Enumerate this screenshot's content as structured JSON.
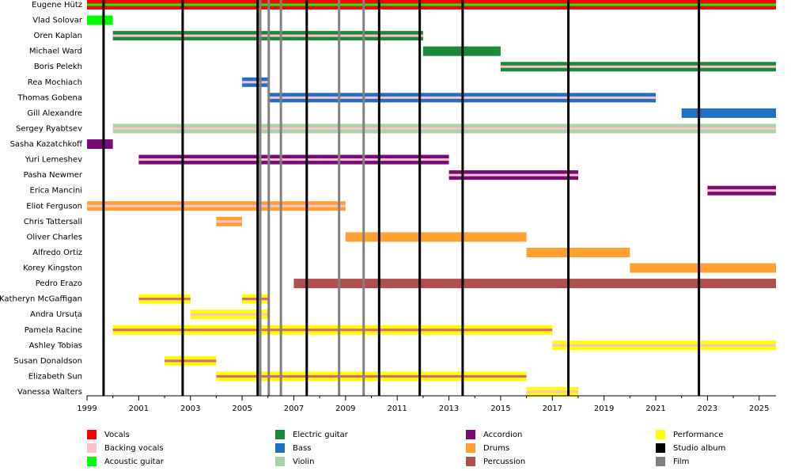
{
  "chart_data": {
    "type": "timeline",
    "xlim": [
      1999,
      2025.65
    ],
    "xticks": [
      1999,
      2001,
      2003,
      2005,
      2007,
      2009,
      2011,
      2013,
      2015,
      2017,
      2019,
      2021,
      2023,
      2025
    ],
    "minor_xticks": [
      2000,
      2002,
      2004,
      2006,
      2008,
      2010,
      2012,
      2014,
      2016,
      2018,
      2020,
      2022,
      2024
    ],
    "series": [
      {
        "name": "Eugene Hütz",
        "color": "#ff0000",
        "stripe": "#00ff00",
        "periods": [
          {
            "start": 1999,
            "end": 2025.65
          }
        ]
      },
      {
        "name": "Vlad Solovar",
        "color": "#00ff00",
        "stripe": null,
        "periods": [
          {
            "start": 1999,
            "end": 2000
          }
        ]
      },
      {
        "name": "Oren Kaplan",
        "color": "#1a8a3a",
        "stripe": "#ffc0cb",
        "periods": [
          {
            "start": 2000,
            "end": 2012
          }
        ]
      },
      {
        "name": "Michael Ward",
        "color": "#1a8a3a",
        "stripe": null,
        "periods": [
          {
            "start": 2012,
            "end": 2015
          }
        ]
      },
      {
        "name": "Boris Pelekh",
        "color": "#1a8a3a",
        "stripe": "#ffc0cb",
        "periods": [
          {
            "start": 2015,
            "end": 2025.65
          }
        ]
      },
      {
        "name": "Rea Mochiach",
        "color": "#1f6fc5",
        "stripe": "#ffc0cb",
        "periods": [
          {
            "start": 2005,
            "end": 2006
          }
        ]
      },
      {
        "name": "Thomas Gobena",
        "color": "#1f6fc5",
        "stripe": "#ffc0cb",
        "periods": [
          {
            "start": 2006,
            "end": 2021
          }
        ]
      },
      {
        "name": "Gill Alexandre",
        "color": "#1f6fc5",
        "stripe": null,
        "periods": [
          {
            "start": 2022,
            "end": 2025.65
          }
        ]
      },
      {
        "name": "Sergey Ryabtsev",
        "color": "#a8d4a8",
        "stripe": "#ffc0cb",
        "periods": [
          {
            "start": 2000,
            "end": 2025.65
          }
        ]
      },
      {
        "name": "Sasha Kazatchkoff",
        "color": "#7a0a7a",
        "stripe": null,
        "periods": [
          {
            "start": 1999,
            "end": 2000
          }
        ]
      },
      {
        "name": "Yuri Lemeshev",
        "color": "#7a0a7a",
        "stripe": "#ffc0cb",
        "periods": [
          {
            "start": 2001,
            "end": 2013
          }
        ]
      },
      {
        "name": "Pasha Newmer",
        "color": "#7a0a7a",
        "stripe": "#ffc0cb",
        "periods": [
          {
            "start": 2013,
            "end": 2018
          }
        ]
      },
      {
        "name": "Erica Mancini",
        "color": "#7a0a7a",
        "stripe": "#ffc0cb",
        "periods": [
          {
            "start": 2023,
            "end": 2025.65
          }
        ]
      },
      {
        "name": "Eliot Ferguson",
        "color": "#ffa030",
        "stripe": "#ffc0cb",
        "periods": [
          {
            "start": 1999,
            "end": 2009
          }
        ]
      },
      {
        "name": "Chris Tattersall",
        "color": "#ffa030",
        "stripe": "#ffc0cb",
        "periods": [
          {
            "start": 2004,
            "end": 2005
          }
        ]
      },
      {
        "name": "Oliver Charles",
        "color": "#ffa030",
        "stripe": null,
        "periods": [
          {
            "start": 2009,
            "end": 2016
          }
        ]
      },
      {
        "name": "Alfredo Ortiz",
        "color": "#ffa030",
        "stripe": null,
        "periods": [
          {
            "start": 2016,
            "end": 2020
          }
        ]
      },
      {
        "name": "Korey Kingston",
        "color": "#ffa030",
        "stripe": null,
        "periods": [
          {
            "start": 2020,
            "end": 2025.65
          }
        ]
      },
      {
        "name": "Pedro Erazo",
        "color": "#b04f4f",
        "stripe": null,
        "periods": [
          {
            "start": 2007,
            "end": 2025.65
          }
        ]
      },
      {
        "name": "Katheryn McGaffigan",
        "color": "#ffff00",
        "stripe": "#e06080",
        "periods": [
          {
            "start": 2001,
            "end": 2003
          },
          {
            "start": 2005,
            "end": 2006
          }
        ]
      },
      {
        "name": "Andra Ursuța",
        "color": "#ffff00",
        "stripe": "#ffc0cb",
        "periods": [
          {
            "start": 2003,
            "end": 2006
          }
        ]
      },
      {
        "name": "Pamela Racine",
        "color": "#ffff00",
        "stripe": "#e06080",
        "periods": [
          {
            "start": 2000,
            "end": 2017
          }
        ]
      },
      {
        "name": "Ashley Tobias",
        "color": "#ffff00",
        "stripe": "#ffc0cb",
        "periods": [
          {
            "start": 2017,
            "end": 2025.65
          }
        ]
      },
      {
        "name": "Susan Donaldson",
        "color": "#ffff00",
        "stripe": "#e06080",
        "periods": [
          {
            "start": 2002,
            "end": 2004
          }
        ]
      },
      {
        "name": "Elizabeth Sun",
        "color": "#ffff00",
        "stripe": "#e06080",
        "periods": [
          {
            "start": 2004,
            "end": 2016
          }
        ]
      },
      {
        "name": "Vanessa Walters",
        "color": "#ffff00",
        "stripe": "#ffc0cb",
        "periods": [
          {
            "start": 2016,
            "end": 2018
          }
        ]
      }
    ],
    "events": [
      {
        "x": 1999.64,
        "color": "#000000",
        "width": 3
      },
      {
        "x": 2002.7,
        "color": "#000000",
        "width": 3
      },
      {
        "x": 2005.6,
        "color": "#000000",
        "width": 3
      },
      {
        "x": 2005.7,
        "color": "#808080",
        "width": 3
      },
      {
        "x": 2006.03,
        "color": "#808080",
        "width": 3
      },
      {
        "x": 2006.5,
        "color": "#808080",
        "width": 3
      },
      {
        "x": 2007.5,
        "color": "#000000",
        "width": 3
      },
      {
        "x": 2008.75,
        "color": "#808080",
        "width": 3
      },
      {
        "x": 2009.7,
        "color": "#808080",
        "width": 3
      },
      {
        "x": 2010.3,
        "color": "#000000",
        "width": 3
      },
      {
        "x": 2011.87,
        "color": "#000000",
        "width": 3
      },
      {
        "x": 2013.53,
        "color": "#000000",
        "width": 3
      },
      {
        "x": 2017.62,
        "color": "#000000",
        "width": 3
      },
      {
        "x": 2022.67,
        "color": "#000000",
        "width": 3
      }
    ],
    "legend": [
      {
        "name": "Vocals",
        "color": "#ff0000"
      },
      {
        "name": "Backing vocals",
        "color": "#ffc0cb"
      },
      {
        "name": "Acoustic guitar",
        "color": "#00ff00"
      },
      {
        "name": "Electric guitar",
        "color": "#1a8a3a"
      },
      {
        "name": "Bass",
        "color": "#1f6fc5"
      },
      {
        "name": "Violin",
        "color": "#a8d4a8"
      },
      {
        "name": "Accordion",
        "color": "#7a0a7a"
      },
      {
        "name": "Drums",
        "color": "#ffa030"
      },
      {
        "name": "Percussion",
        "color": "#b04f4f"
      },
      {
        "name": "Performance",
        "color": "#ffff00"
      },
      {
        "name": "Studio album",
        "color": "#000000"
      },
      {
        "name": "Film",
        "color": "#808080"
      }
    ]
  }
}
